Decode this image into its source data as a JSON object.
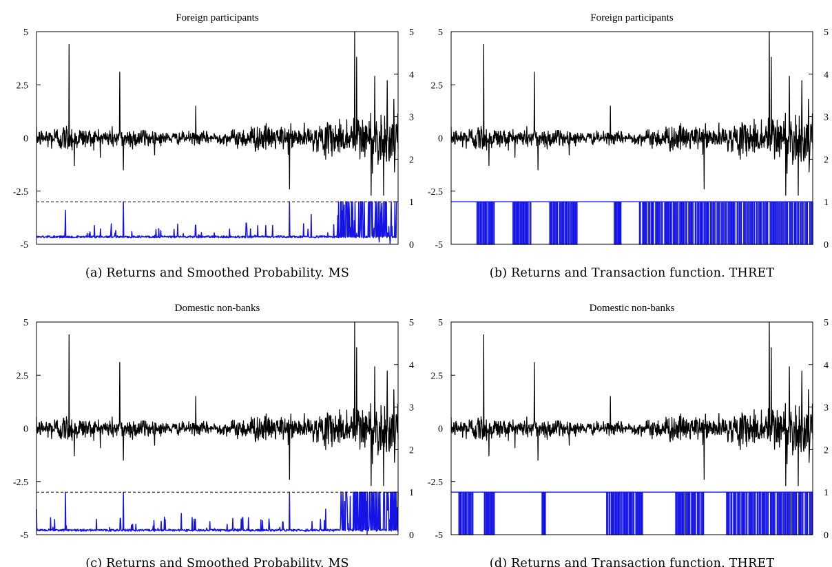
{
  "chart_data": [
    {
      "id": "a",
      "type": "line",
      "title": "Foreign participants",
      "caption": "(a)  Returns and Smoothed Probability. MS",
      "left_axis": {
        "ylim": [
          -5,
          5
        ],
        "ticks": [
          "5",
          "2.5",
          "0",
          "-2.5",
          "-5"
        ]
      },
      "right_axis": {
        "ylim": [
          0,
          5
        ],
        "ticks": [
          "5",
          "4",
          "3",
          "2",
          "1",
          "0"
        ]
      },
      "reference_line": {
        "axis": "right",
        "value": 1,
        "style": "dashed"
      },
      "series": [
        {
          "role": "returns",
          "axis": "left",
          "color": "#000000",
          "n": 1100,
          "spikes": [
            [
              0.09,
              4.4
            ],
            [
              0.105,
              -1.3
            ],
            [
              0.23,
              3.1
            ],
            [
              0.24,
              -1.5
            ],
            [
              0.44,
              1.5
            ],
            [
              0.7,
              -2.4
            ],
            [
              0.8,
              -1.0
            ],
            [
              0.885,
              3.8
            ],
            [
              0.88,
              5.0
            ],
            [
              0.925,
              -2.7
            ],
            [
              0.935,
              2.9
            ],
            [
              0.96,
              -2.7
            ],
            [
              0.97,
              2.7
            ],
            [
              0.99,
              -1.6
            ]
          ],
          "volatility": [
            [
              0.0,
              0.35
            ],
            [
              0.08,
              0.6
            ],
            [
              0.14,
              0.4
            ],
            [
              0.3,
              0.45
            ],
            [
              0.35,
              0.25
            ],
            [
              0.52,
              0.25
            ],
            [
              0.6,
              0.55
            ],
            [
              0.68,
              0.5
            ],
            [
              0.75,
              0.45
            ],
            [
              0.8,
              0.6
            ],
            [
              0.86,
              0.85
            ],
            [
              0.9,
              1.1
            ],
            [
              1.0,
              1.1
            ]
          ]
        },
        {
          "role": "smoothed_probability",
          "axis": "right",
          "color": "#1414e6",
          "base": 0.15,
          "spikes": [
            [
              0.08,
              0.8
            ],
            [
              0.24,
              1.0
            ],
            [
              0.38,
              0.35
            ],
            [
              0.44,
              0.45
            ],
            [
              0.58,
              0.5
            ],
            [
              0.7,
              1.0
            ],
            [
              0.76,
              0.7
            ],
            [
              0.85,
              0.45
            ],
            [
              0.9,
              1.0
            ],
            [
              0.95,
              1.0
            ],
            [
              1.0,
              1.0
            ]
          ],
          "dense_regions": [
            [
              0.83,
              1.0
            ]
          ]
        }
      ]
    },
    {
      "id": "b",
      "type": "line",
      "title": "Foreign participants",
      "caption": "(b)  Returns and Transaction function. THRET",
      "left_axis": {
        "ylim": [
          -5,
          5
        ],
        "ticks": [
          "5",
          "2.5",
          "0",
          "-2.5",
          "-5"
        ]
      },
      "right_axis": {
        "ylim": [
          0,
          5
        ],
        "ticks": [
          "5",
          "4",
          "3",
          "2",
          "1",
          "0"
        ]
      },
      "series": [
        {
          "role": "returns",
          "axis": "left",
          "color": "#000000",
          "n": 1100,
          "spikes": [
            [
              0.09,
              4.4
            ],
            [
              0.105,
              -1.3
            ],
            [
              0.23,
              3.1
            ],
            [
              0.24,
              -1.5
            ],
            [
              0.44,
              1.5
            ],
            [
              0.7,
              -2.4
            ],
            [
              0.8,
              -1.0
            ],
            [
              0.885,
              3.8
            ],
            [
              0.88,
              5.0
            ],
            [
              0.925,
              -2.7
            ],
            [
              0.935,
              2.9
            ],
            [
              0.96,
              -2.7
            ],
            [
              0.97,
              2.7
            ],
            [
              0.99,
              -1.6
            ]
          ],
          "volatility": [
            [
              0.0,
              0.35
            ],
            [
              0.08,
              0.6
            ],
            [
              0.14,
              0.4
            ],
            [
              0.3,
              0.45
            ],
            [
              0.35,
              0.25
            ],
            [
              0.52,
              0.25
            ],
            [
              0.6,
              0.55
            ],
            [
              0.68,
              0.5
            ],
            [
              0.75,
              0.45
            ],
            [
              0.8,
              0.6
            ],
            [
              0.86,
              0.85
            ],
            [
              0.9,
              1.1
            ],
            [
              1.0,
              1.1
            ]
          ]
        },
        {
          "role": "transaction_function",
          "axis": "right",
          "color": "#1414e6",
          "values": "binary 0/1",
          "active_regions": [
            [
              0.07,
              0.12
            ],
            [
              0.17,
              0.22
            ],
            [
              0.27,
              0.35
            ],
            [
              0.45,
              0.47
            ],
            [
              0.52,
              1.0
            ]
          ]
        }
      ]
    },
    {
      "id": "c",
      "type": "line",
      "title": "Domestic non-banks",
      "caption": "(c)  Returns and Smoothed Probability. MS",
      "left_axis": {
        "ylim": [
          -5,
          5
        ],
        "ticks": [
          "5",
          "2.5",
          "0",
          "-2.5",
          "-5"
        ]
      },
      "right_axis": {
        "ylim": [
          0,
          5
        ],
        "ticks": [
          "5",
          "4",
          "3",
          "2",
          "1",
          "0"
        ]
      },
      "reference_line": {
        "axis": "right",
        "value": 1,
        "style": "dashed"
      },
      "series": [
        {
          "role": "returns",
          "axis": "left",
          "color": "#000000",
          "n": 1100,
          "spikes": [
            [
              0.09,
              4.4
            ],
            [
              0.105,
              -1.3
            ],
            [
              0.23,
              3.1
            ],
            [
              0.24,
              -1.5
            ],
            [
              0.44,
              1.5
            ],
            [
              0.7,
              -2.4
            ],
            [
              0.8,
              -1.0
            ],
            [
              0.885,
              3.8
            ],
            [
              0.88,
              5.0
            ],
            [
              0.925,
              -2.7
            ],
            [
              0.935,
              2.9
            ],
            [
              0.96,
              -2.7
            ],
            [
              0.97,
              2.7
            ],
            [
              0.99,
              -1.6
            ]
          ],
          "volatility": [
            [
              0.0,
              0.35
            ],
            [
              0.08,
              0.6
            ],
            [
              0.14,
              0.4
            ],
            [
              0.3,
              0.45
            ],
            [
              0.35,
              0.25
            ],
            [
              0.52,
              0.25
            ],
            [
              0.6,
              0.55
            ],
            [
              0.68,
              0.5
            ],
            [
              0.75,
              0.45
            ],
            [
              0.8,
              0.6
            ],
            [
              0.86,
              0.85
            ],
            [
              0.9,
              1.1
            ],
            [
              1.0,
              1.1
            ]
          ]
        },
        {
          "role": "smoothed_probability",
          "axis": "right",
          "color": "#1414e6",
          "base": 0.08,
          "spikes": [
            [
              0.0,
              0.6
            ],
            [
              0.08,
              1.0
            ],
            [
              0.24,
              1.0
            ],
            [
              0.4,
              0.5
            ],
            [
              0.57,
              0.4
            ],
            [
              0.7,
              1.0
            ],
            [
              0.8,
              0.6
            ],
            [
              0.86,
              0.5
            ],
            [
              0.9,
              1.0
            ],
            [
              0.95,
              1.0
            ],
            [
              1.0,
              1.0
            ]
          ],
          "dense_regions": [
            [
              0.84,
              1.0
            ]
          ]
        }
      ]
    },
    {
      "id": "d",
      "type": "line",
      "title": "Domestic non-banks",
      "caption": "(d)  Returns and Transaction function. THRET",
      "left_axis": {
        "ylim": [
          -5,
          5
        ],
        "ticks": [
          "5",
          "2.5",
          "0",
          "-2.5",
          "-5"
        ]
      },
      "right_axis": {
        "ylim": [
          0,
          5
        ],
        "ticks": [
          "5",
          "4",
          "3",
          "2",
          "1",
          "0"
        ]
      },
      "series": [
        {
          "role": "returns",
          "axis": "left",
          "color": "#000000",
          "n": 1100,
          "spikes": [
            [
              0.09,
              4.4
            ],
            [
              0.105,
              -1.3
            ],
            [
              0.23,
              3.1
            ],
            [
              0.24,
              -1.5
            ],
            [
              0.44,
              1.5
            ],
            [
              0.7,
              -2.4
            ],
            [
              0.8,
              -1.0
            ],
            [
              0.885,
              3.8
            ],
            [
              0.88,
              5.0
            ],
            [
              0.925,
              -2.7
            ],
            [
              0.935,
              2.9
            ],
            [
              0.96,
              -2.7
            ],
            [
              0.97,
              2.7
            ],
            [
              0.99,
              -1.6
            ]
          ],
          "volatility": [
            [
              0.0,
              0.35
            ],
            [
              0.08,
              0.6
            ],
            [
              0.14,
              0.4
            ],
            [
              0.3,
              0.45
            ],
            [
              0.35,
              0.25
            ],
            [
              0.52,
              0.25
            ],
            [
              0.6,
              0.55
            ],
            [
              0.68,
              0.5
            ],
            [
              0.75,
              0.45
            ],
            [
              0.8,
              0.6
            ],
            [
              0.86,
              0.85
            ],
            [
              0.9,
              1.1
            ],
            [
              1.0,
              1.1
            ]
          ]
        },
        {
          "role": "transaction_function",
          "axis": "right",
          "color": "#1414e6",
          "values": "binary 0/1",
          "active_regions": [
            [
              0.02,
              0.06
            ],
            [
              0.09,
              0.12
            ],
            [
              0.25,
              0.26
            ],
            [
              0.43,
              0.53
            ],
            [
              0.62,
              0.7
            ],
            [
              0.76,
              1.0
            ]
          ]
        }
      ]
    }
  ]
}
